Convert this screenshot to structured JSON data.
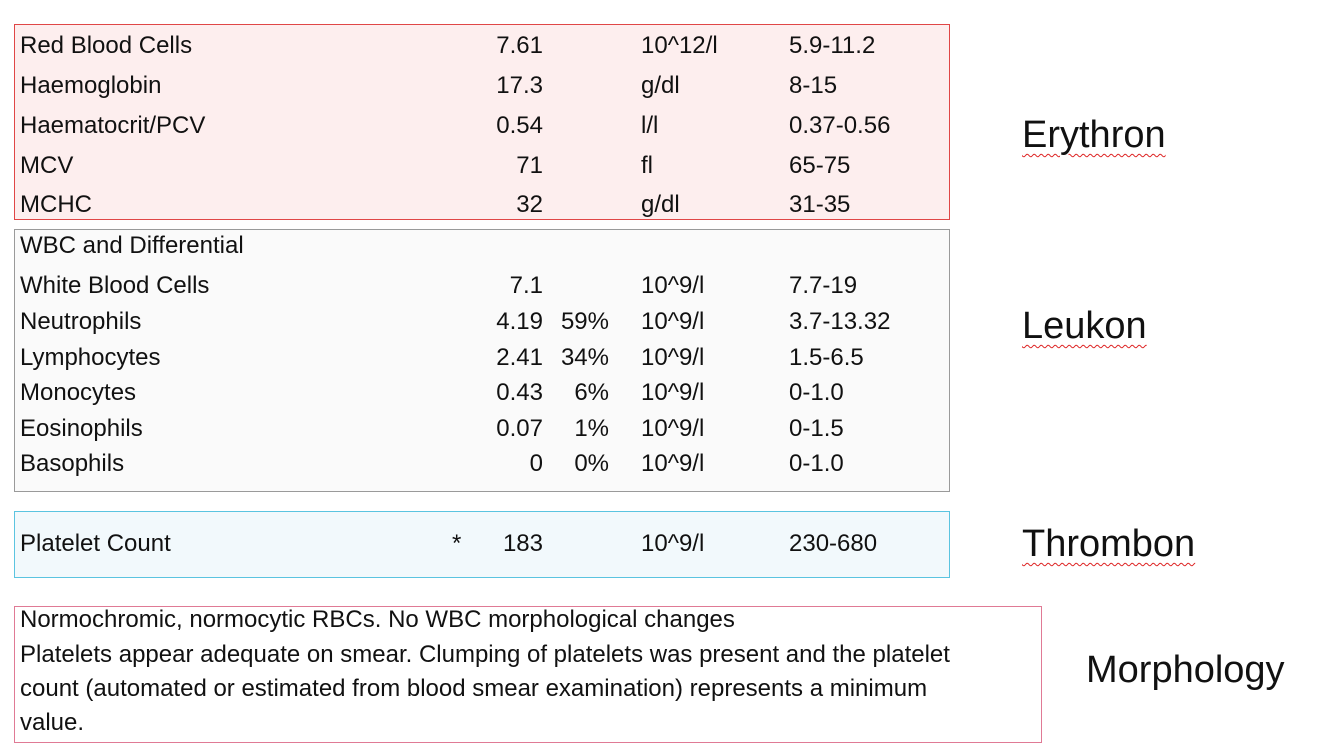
{
  "erythron": {
    "label": "Erythron",
    "rows": [
      {
        "name": "Red Blood Cells",
        "value": "7.61",
        "unit": "10^12/l",
        "range": "5.9-11.2"
      },
      {
        "name": "Haemoglobin",
        "value": "17.3",
        "unit": "g/dl",
        "range": "8-15"
      },
      {
        "name": "Haematocrit/PCV",
        "value": "0.54",
        "unit": "l/l",
        "range": "0.37-0.56"
      },
      {
        "name": "MCV",
        "value": "71",
        "unit": "fl",
        "range": "65-75"
      },
      {
        "name": "MCHC",
        "value": "32",
        "unit": "g/dl",
        "range": "31-35"
      }
    ]
  },
  "leukon": {
    "label": "Leukon",
    "header": "WBC and Differential",
    "rows": [
      {
        "name": "White Blood Cells",
        "value": "7.1",
        "unit": "10^9/l",
        "range": "7.7-19"
      },
      {
        "name": "Neutrophils",
        "value": "4.19",
        "percent": "59%",
        "unit": "10^9/l",
        "range": "3.7-13.32"
      },
      {
        "name": "Lymphocytes",
        "value": "2.41",
        "percent": "34%",
        "unit": "10^9/l",
        "range": "1.5-6.5"
      },
      {
        "name": "Monocytes",
        "value": "0.43",
        "percent": "6%",
        "unit": "10^9/l",
        "range": "0-1.0"
      },
      {
        "name": "Eosinophils",
        "value": "0.07",
        "percent": "1%",
        "unit": "10^9/l",
        "range": "0-1.5"
      },
      {
        "name": "Basophils",
        "value": "0",
        "percent": "0%",
        "unit": "10^9/l",
        "range": "0-1.0"
      }
    ]
  },
  "thrombon": {
    "label": "Thrombon",
    "rows": [
      {
        "name": "Platelet Count",
        "flag": "*",
        "value": "183",
        "unit": "10^9/l",
        "range": "230-680"
      }
    ]
  },
  "morphology": {
    "label": "Morphology",
    "lines": [
      "Normochromic, normocytic RBCs. No WBC morphological changes",
      "Platelets appear adequate on smear. Clumping of platelets was present and the platelet",
      "count (automated or estimated from blood smear examination) represents a minimum",
      "value."
    ]
  }
}
